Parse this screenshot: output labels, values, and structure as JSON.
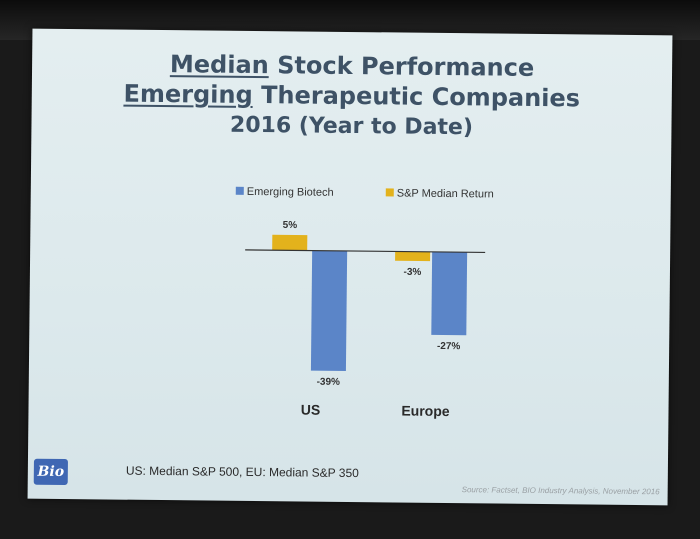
{
  "slide": {
    "title_line1_u": "Median",
    "title_line1_rest": " Stock Performance",
    "title_line2_u": "Emerging",
    "title_line2_rest": " Therapeutic Companies",
    "title_line3": "2016 (Year to Date)",
    "footnote": "US: Median S&P 500, EU: Median S&P 350",
    "source": "Source: Factset, BIO Industry Analysis, November 2016",
    "logo_text": "Bio"
  },
  "colors": {
    "emerging": "#5b85c8",
    "sp": "#e3b21c"
  },
  "chart_data": {
    "type": "bar",
    "categories": [
      "US",
      "Europe"
    ],
    "series": [
      {
        "name": "Emerging Biotech",
        "values": [
          -39,
          -27
        ],
        "labels": [
          "-39%",
          "-27%"
        ]
      },
      {
        "name": "S&P Median Return",
        "values": [
          5,
          -3
        ],
        "labels": [
          "5%",
          "-3%"
        ]
      }
    ],
    "ylim": [
      -40,
      8
    ],
    "legend": "top",
    "grid": false
  }
}
